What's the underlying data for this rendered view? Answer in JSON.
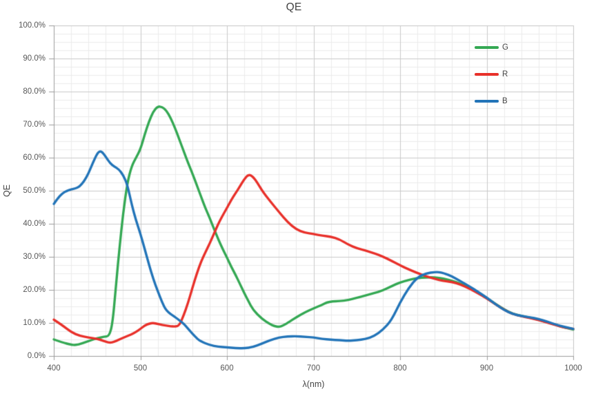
{
  "chart": {
    "title": "QE",
    "x_axis": {
      "title": "λ(nm)",
      "min": 400,
      "max": 1000,
      "major_step": 100,
      "minor_step": 20,
      "tick_labels": [
        "400",
        "500",
        "600",
        "700",
        "800",
        "900",
        "1000"
      ]
    },
    "y_axis": {
      "title": "QE",
      "min": 0,
      "max": 100,
      "major_step": 10,
      "minor_step": 2.5,
      "tick_labels": [
        "100.0%",
        "90.0%",
        "80.0%",
        "70.0%",
        "60.0%",
        "50.0%",
        "40.0%",
        "30.0%",
        "20.0%",
        "10.0%",
        "0.0%"
      ]
    },
    "legend": {
      "items": [
        {
          "label": "G",
          "color": "#34a853"
        },
        {
          "label": "R",
          "color": "#e8302a"
        },
        {
          "label": "B",
          "color": "#2274b8"
        }
      ]
    },
    "colors": {
      "grid_major": "#c9c9c9",
      "grid_minor": "#ebebeb",
      "plot_border": "#c5c5c5",
      "axis_line": "#9b9b9b",
      "background": "#ffffff"
    }
  },
  "chart_data": {
    "type": "line",
    "title": "QE",
    "xlabel": "λ(nm)",
    "ylabel": "QE",
    "xlim": [
      400,
      1000
    ],
    "ylim": [
      0,
      100
    ],
    "y_unit": "percent",
    "grid": "major+minor",
    "legend_position": "top-right",
    "series": [
      {
        "name": "G",
        "color": "#34a853",
        "points": [
          [
            400,
            5.0
          ],
          [
            410,
            4.1
          ],
          [
            420,
            3.4
          ],
          [
            425,
            3.3
          ],
          [
            430,
            3.6
          ],
          [
            440,
            4.5
          ],
          [
            450,
            5.4
          ],
          [
            458,
            5.8
          ],
          [
            464,
            6.0
          ],
          [
            468,
            10
          ],
          [
            472,
            22
          ],
          [
            476,
            33
          ],
          [
            480,
            43
          ],
          [
            485,
            52.5
          ],
          [
            490,
            57.5
          ],
          [
            495,
            60
          ],
          [
            500,
            62.5
          ],
          [
            505,
            67
          ],
          [
            510,
            71
          ],
          [
            515,
            74
          ],
          [
            520,
            75.5
          ],
          [
            525,
            75.4
          ],
          [
            530,
            74.3
          ],
          [
            535,
            72
          ],
          [
            540,
            69
          ],
          [
            545,
            65.5
          ],
          [
            550,
            62
          ],
          [
            555,
            58.5
          ],
          [
            560,
            55.3
          ],
          [
            565,
            51.8
          ],
          [
            570,
            48.3
          ],
          [
            575,
            44.8
          ],
          [
            580,
            41.8
          ],
          [
            585,
            38.5
          ],
          [
            590,
            35.3
          ],
          [
            595,
            32.4
          ],
          [
            600,
            29.8
          ],
          [
            605,
            27
          ],
          [
            610,
            24.5
          ],
          [
            615,
            21.8
          ],
          [
            620,
            19
          ],
          [
            625,
            16.5
          ],
          [
            630,
            14
          ],
          [
            640,
            11.3
          ],
          [
            650,
            9.6
          ],
          [
            655,
            9.0
          ],
          [
            660,
            8.8
          ],
          [
            665,
            9.2
          ],
          [
            670,
            10
          ],
          [
            680,
            11.7
          ],
          [
            690,
            13.2
          ],
          [
            700,
            14.4
          ],
          [
            710,
            15.5
          ],
          [
            715,
            16.2
          ],
          [
            722,
            16.5
          ],
          [
            730,
            16.6
          ],
          [
            740,
            16.9
          ],
          [
            750,
            17.6
          ],
          [
            760,
            18.3
          ],
          [
            770,
            19
          ],
          [
            780,
            19.8
          ],
          [
            790,
            21.1
          ],
          [
            800,
            22.3
          ],
          [
            810,
            23
          ],
          [
            820,
            23.6
          ],
          [
            830,
            23.8
          ],
          [
            840,
            23.8
          ],
          [
            850,
            23.4
          ],
          [
            860,
            22.8
          ],
          [
            870,
            21.8
          ],
          [
            880,
            20.7
          ],
          [
            890,
            19.2
          ],
          [
            900,
            17.6
          ],
          [
            910,
            15.8
          ],
          [
            920,
            14.1
          ],
          [
            930,
            12.8
          ],
          [
            940,
            12.1
          ],
          [
            950,
            11.6
          ],
          [
            960,
            11.0
          ],
          [
            970,
            10.2
          ],
          [
            980,
            9.4
          ],
          [
            990,
            8.6
          ],
          [
            1000,
            8.0
          ]
        ]
      },
      {
        "name": "R",
        "color": "#e8302a",
        "points": [
          [
            400,
            11.0
          ],
          [
            410,
            9.3
          ],
          [
            420,
            7.2
          ],
          [
            430,
            6.1
          ],
          [
            440,
            5.6
          ],
          [
            450,
            5.2
          ],
          [
            455,
            4.8
          ],
          [
            460,
            4.3
          ],
          [
            465,
            4.0
          ],
          [
            470,
            4.3
          ],
          [
            475,
            4.9
          ],
          [
            480,
            5.5
          ],
          [
            490,
            6.6
          ],
          [
            495,
            7.3
          ],
          [
            500,
            8.2
          ],
          [
            505,
            9.2
          ],
          [
            510,
            9.8
          ],
          [
            515,
            10.0
          ],
          [
            520,
            9.7
          ],
          [
            525,
            9.4
          ],
          [
            530,
            9.2
          ],
          [
            535,
            9.0
          ],
          [
            540,
            8.9
          ],
          [
            545,
            9.2
          ],
          [
            550,
            12.3
          ],
          [
            555,
            16
          ],
          [
            560,
            20.5
          ],
          [
            565,
            24.8
          ],
          [
            570,
            28.5
          ],
          [
            575,
            31.3
          ],
          [
            580,
            34
          ],
          [
            585,
            37
          ],
          [
            590,
            40
          ],
          [
            595,
            42.5
          ],
          [
            600,
            44.8
          ],
          [
            605,
            47.2
          ],
          [
            610,
            49.3
          ],
          [
            615,
            51.3
          ],
          [
            620,
            53.5
          ],
          [
            625,
            55.0
          ],
          [
            630,
            54.3
          ],
          [
            635,
            52.5
          ],
          [
            640,
            50.3
          ],
          [
            645,
            48.5
          ],
          [
            650,
            46.8
          ],
          [
            660,
            43.6
          ],
          [
            670,
            40.5
          ],
          [
            680,
            38.3
          ],
          [
            690,
            37.3
          ],
          [
            700,
            36.9
          ],
          [
            710,
            36.4
          ],
          [
            720,
            36.1
          ],
          [
            730,
            35.3
          ],
          [
            740,
            33.7
          ],
          [
            750,
            32.6
          ],
          [
            760,
            31.9
          ],
          [
            770,
            31.1
          ],
          [
            780,
            30.1
          ],
          [
            790,
            28.8
          ],
          [
            800,
            27.4
          ],
          [
            810,
            26.2
          ],
          [
            820,
            25.1
          ],
          [
            830,
            24.1
          ],
          [
            840,
            23.3
          ],
          [
            850,
            22.7
          ],
          [
            860,
            22.4
          ],
          [
            870,
            21.6
          ],
          [
            880,
            20.4
          ],
          [
            890,
            19.0
          ],
          [
            900,
            17.4
          ],
          [
            910,
            15.7
          ],
          [
            920,
            14.0
          ],
          [
            930,
            12.7
          ],
          [
            940,
            12.0
          ],
          [
            950,
            11.5
          ],
          [
            960,
            10.9
          ],
          [
            970,
            10.1
          ],
          [
            980,
            9.3
          ],
          [
            990,
            8.6
          ],
          [
            1000,
            8.2
          ]
        ]
      },
      {
        "name": "B",
        "color": "#2274b8",
        "points": [
          [
            400,
            46
          ],
          [
            405,
            47.9
          ],
          [
            410,
            49.2
          ],
          [
            415,
            50
          ],
          [
            420,
            50.4
          ],
          [
            425,
            50.7
          ],
          [
            430,
            51.3
          ],
          [
            435,
            52.9
          ],
          [
            440,
            55.2
          ],
          [
            445,
            58.4
          ],
          [
            450,
            61.2
          ],
          [
            453,
            62
          ],
          [
            456,
            61.7
          ],
          [
            460,
            60.3
          ],
          [
            465,
            58.3
          ],
          [
            470,
            57.3
          ],
          [
            475,
            56.5
          ],
          [
            480,
            54.8
          ],
          [
            485,
            51.8
          ],
          [
            490,
            45.8
          ],
          [
            495,
            41
          ],
          [
            500,
            37
          ],
          [
            505,
            32.4
          ],
          [
            510,
            27.6
          ],
          [
            515,
            23.2
          ],
          [
            520,
            19.7
          ],
          [
            525,
            16.3
          ],
          [
            530,
            13.6
          ],
          [
            540,
            11.8
          ],
          [
            545,
            10.8
          ],
          [
            550,
            9.8
          ],
          [
            555,
            8.3
          ],
          [
            560,
            6.8
          ],
          [
            566,
            5.1
          ],
          [
            570,
            4.4
          ],
          [
            580,
            3.3
          ],
          [
            590,
            2.8
          ],
          [
            600,
            2.6
          ],
          [
            610,
            2.4
          ],
          [
            620,
            2.3
          ],
          [
            630,
            2.7
          ],
          [
            640,
            3.7
          ],
          [
            650,
            4.8
          ],
          [
            660,
            5.6
          ],
          [
            670,
            5.9
          ],
          [
            680,
            6.0
          ],
          [
            690,
            5.8
          ],
          [
            700,
            5.6
          ],
          [
            710,
            5.2
          ],
          [
            720,
            4.9
          ],
          [
            730,
            4.8
          ],
          [
            740,
            4.6
          ],
          [
            750,
            4.8
          ],
          [
            760,
            5.1
          ],
          [
            770,
            6.0
          ],
          [
            780,
            7.9
          ],
          [
            790,
            10.8
          ],
          [
            800,
            16.2
          ],
          [
            810,
            20.6
          ],
          [
            820,
            23.8
          ],
          [
            830,
            25.0
          ],
          [
            840,
            25.4
          ],
          [
            845,
            25.4
          ],
          [
            850,
            25.1
          ],
          [
            860,
            24.1
          ],
          [
            870,
            22.6
          ],
          [
            880,
            21.1
          ],
          [
            890,
            19.4
          ],
          [
            900,
            17.7
          ],
          [
            910,
            15.7
          ],
          [
            920,
            13.9
          ],
          [
            930,
            12.7
          ],
          [
            940,
            12.1
          ],
          [
            950,
            11.7
          ],
          [
            960,
            11.2
          ],
          [
            970,
            10.4
          ],
          [
            980,
            9.5
          ],
          [
            990,
            8.8
          ],
          [
            1000,
            8.2
          ]
        ]
      }
    ]
  }
}
